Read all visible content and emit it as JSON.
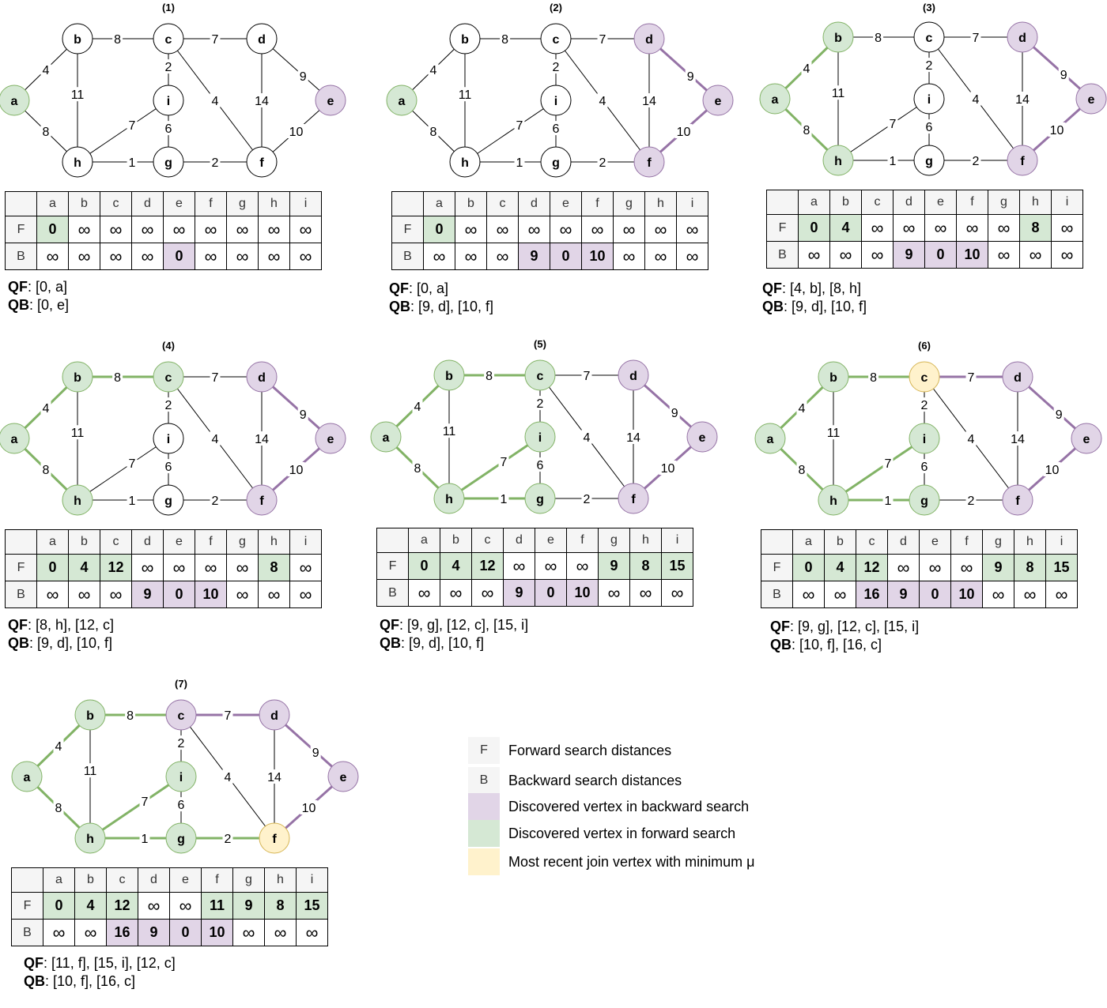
{
  "colors": {
    "forward": "#d5e8d4",
    "backward": "#e1d5e7",
    "join": "#fff2cc",
    "forward_stroke": "#82b366",
    "backward_stroke": "#9673a6",
    "join_stroke": "#d6b656",
    "forward_edge": "#82b366",
    "backward_edge": "#9673a6"
  },
  "graph": {
    "vertices": [
      "a",
      "b",
      "c",
      "d",
      "e",
      "f",
      "g",
      "h",
      "i"
    ],
    "edges": [
      {
        "u": "a",
        "v": "b",
        "w": "4"
      },
      {
        "u": "a",
        "v": "h",
        "w": "8"
      },
      {
        "u": "b",
        "v": "c",
        "w": "8"
      },
      {
        "u": "b",
        "v": "h",
        "w": "11"
      },
      {
        "u": "c",
        "v": "d",
        "w": "7"
      },
      {
        "u": "c",
        "v": "i",
        "w": "2"
      },
      {
        "u": "c",
        "v": "f",
        "w": "4"
      },
      {
        "u": "d",
        "v": "e",
        "w": "9"
      },
      {
        "u": "d",
        "v": "f",
        "w": "14"
      },
      {
        "u": "e",
        "v": "f",
        "w": "10"
      },
      {
        "u": "h",
        "v": "i",
        "w": "7"
      },
      {
        "u": "h",
        "v": "g",
        "w": "1"
      },
      {
        "u": "i",
        "v": "g",
        "w": "6"
      },
      {
        "u": "g",
        "v": "f",
        "w": "2"
      }
    ]
  },
  "table_columns": [
    "a",
    "b",
    "c",
    "d",
    "e",
    "f",
    "g",
    "h",
    "i"
  ],
  "row_labels": {
    "forward": "F",
    "backward": "B"
  },
  "infinity_symbol": "∞",
  "queue_labels": {
    "forward": "QF",
    "backward": "QB"
  },
  "steps": [
    {
      "title": "(1)",
      "nodes": {
        "a": "fwd",
        "e": "bwd"
      },
      "edges": {},
      "F": [
        "0",
        "∞",
        "∞",
        "∞",
        "∞",
        "∞",
        "∞",
        "∞",
        "∞"
      ],
      "B": [
        "∞",
        "∞",
        "∞",
        "∞",
        "0",
        "∞",
        "∞",
        "∞",
        "∞"
      ],
      "F_state": [
        "fwd",
        "",
        "",
        "",
        "",
        "",
        "",
        "",
        ""
      ],
      "B_state": [
        "",
        "",
        "",
        "",
        "bwd",
        "",
        "",
        "",
        ""
      ],
      "QF": ": [0, a]",
      "QB": ": [0, e]"
    },
    {
      "title": "(2)",
      "nodes": {
        "a": "fwd",
        "d": "bwd",
        "e": "bwd",
        "f": "bwd"
      },
      "edges": {
        "d-e": "bwd",
        "e-f": "bwd"
      },
      "F": [
        "0",
        "∞",
        "∞",
        "∞",
        "∞",
        "∞",
        "∞",
        "∞",
        "∞"
      ],
      "B": [
        "∞",
        "∞",
        "∞",
        "9",
        "0",
        "10",
        "∞",
        "∞",
        "∞"
      ],
      "F_state": [
        "fwd",
        "",
        "",
        "",
        "",
        "",
        "",
        "",
        ""
      ],
      "B_state": [
        "",
        "",
        "",
        "bwd",
        "bwd",
        "bwd",
        "",
        "",
        ""
      ],
      "QF": ": [0, a]",
      "QB": ": [9, d], [10, f]"
    },
    {
      "title": "(3)",
      "nodes": {
        "a": "fwd",
        "b": "fwd",
        "h": "fwd",
        "d": "bwd",
        "e": "bwd",
        "f": "bwd"
      },
      "edges": {
        "a-b": "fwd",
        "a-h": "fwd",
        "d-e": "bwd",
        "e-f": "bwd"
      },
      "F": [
        "0",
        "4",
        "∞",
        "∞",
        "∞",
        "∞",
        "∞",
        "8",
        "∞"
      ],
      "B": [
        "∞",
        "∞",
        "∞",
        "9",
        "0",
        "10",
        "∞",
        "∞",
        "∞"
      ],
      "F_state": [
        "fwd",
        "fwd",
        "",
        "",
        "",
        "",
        "",
        "fwd",
        ""
      ],
      "B_state": [
        "",
        "",
        "",
        "bwd",
        "bwd",
        "bwd",
        "",
        "",
        ""
      ],
      "QF": ": [4, b], [8, h]",
      "QB": ": [9, d], [10, f]"
    },
    {
      "title": "(4)",
      "nodes": {
        "a": "fwd",
        "b": "fwd",
        "c": "fwd",
        "h": "fwd",
        "d": "bwd",
        "e": "bwd",
        "f": "bwd"
      },
      "edges": {
        "a-b": "fwd",
        "a-h": "fwd",
        "b-c": "fwd",
        "d-e": "bwd",
        "e-f": "bwd"
      },
      "F": [
        "0",
        "4",
        "12",
        "∞",
        "∞",
        "∞",
        "∞",
        "8",
        "∞"
      ],
      "B": [
        "∞",
        "∞",
        "∞",
        "9",
        "0",
        "10",
        "∞",
        "∞",
        "∞"
      ],
      "F_state": [
        "fwd",
        "fwd",
        "fwd",
        "",
        "",
        "",
        "",
        "fwd",
        ""
      ],
      "B_state": [
        "",
        "",
        "",
        "bwd",
        "bwd",
        "bwd",
        "",
        "",
        ""
      ],
      "QF": ": [8, h], [12, c]",
      "QB": ": [9, d], [10, f]"
    },
    {
      "title": "(5)",
      "nodes": {
        "a": "fwd",
        "b": "fwd",
        "c": "fwd",
        "h": "fwd",
        "i": "fwd",
        "g": "fwd",
        "d": "bwd",
        "e": "bwd",
        "f": "bwd"
      },
      "edges": {
        "a-b": "fwd",
        "a-h": "fwd",
        "b-c": "fwd",
        "h-i": "fwd",
        "h-g": "fwd",
        "d-e": "bwd",
        "e-f": "bwd"
      },
      "F": [
        "0",
        "4",
        "12",
        "∞",
        "∞",
        "∞",
        "9",
        "8",
        "15"
      ],
      "B": [
        "∞",
        "∞",
        "∞",
        "9",
        "0",
        "10",
        "∞",
        "∞",
        "∞"
      ],
      "F_state": [
        "fwd",
        "fwd",
        "fwd",
        "",
        "",
        "",
        "fwd",
        "fwd",
        "fwd"
      ],
      "B_state": [
        "",
        "",
        "",
        "bwd",
        "bwd",
        "bwd",
        "",
        "",
        ""
      ],
      "QF": ": [9, g], [12, c], [15, i]",
      "QB": ": [9, d], [10, f]"
    },
    {
      "title": "(6)",
      "nodes": {
        "a": "fwd",
        "b": "fwd",
        "c": "join",
        "h": "fwd",
        "i": "fwd",
        "g": "fwd",
        "d": "bwd",
        "e": "bwd",
        "f": "bwd"
      },
      "edges": {
        "a-b": "fwd",
        "a-h": "fwd",
        "b-c": "fwd",
        "h-i": "fwd",
        "h-g": "fwd",
        "c-d": "bwd",
        "d-e": "bwd",
        "e-f": "bwd"
      },
      "F": [
        "0",
        "4",
        "12",
        "∞",
        "∞",
        "∞",
        "9",
        "8",
        "15"
      ],
      "B": [
        "∞",
        "∞",
        "16",
        "9",
        "0",
        "10",
        "∞",
        "∞",
        "∞"
      ],
      "F_state": [
        "fwd",
        "fwd",
        "fwd",
        "",
        "",
        "",
        "fwd",
        "fwd",
        "fwd"
      ],
      "B_state": [
        "",
        "",
        "bwd",
        "bwd",
        "bwd",
        "bwd",
        "",
        "",
        ""
      ],
      "QF": ": [9, g], [12, c], [15, i]",
      "QB": ": [10, f], [16, c]"
    },
    {
      "title": "(7)",
      "nodes": {
        "a": "fwd",
        "b": "fwd",
        "c": "bwd",
        "h": "fwd",
        "i": "fwd",
        "g": "fwd",
        "d": "bwd",
        "e": "bwd",
        "f": "join"
      },
      "edges": {
        "a-b": "fwd",
        "a-h": "fwd",
        "b-c": "fwd",
        "h-i": "fwd",
        "h-g": "fwd",
        "g-f": "fwd",
        "c-d": "bwd",
        "d-e": "bwd",
        "e-f": "bwd"
      },
      "F": [
        "0",
        "4",
        "12",
        "∞",
        "∞",
        "11",
        "9",
        "8",
        "15"
      ],
      "B": [
        "∞",
        "∞",
        "16",
        "9",
        "0",
        "10",
        "∞",
        "∞",
        "∞"
      ],
      "F_state": [
        "fwd",
        "fwd",
        "fwd",
        "",
        "",
        "fwd",
        "fwd",
        "fwd",
        "fwd"
      ],
      "B_state": [
        "",
        "",
        "bwd",
        "bwd",
        "bwd",
        "bwd",
        "",
        "",
        ""
      ],
      "QF": ": [11, f], [15, i], [12, c]",
      "QB": ": [10, f], [16, c]"
    }
  ],
  "legend": [
    {
      "swatch_label": "F",
      "text": "Forward search distances",
      "style": "plain"
    },
    {
      "swatch_label": "B",
      "text": "Backward search distances",
      "style": "plain"
    },
    {
      "swatch_label": "",
      "text": "Discovered vertex in backward search",
      "style": "bwd"
    },
    {
      "swatch_label": "",
      "text": "Discovered vertex in forward search",
      "style": "fwd"
    },
    {
      "swatch_label": "",
      "text": "Most recent join vertex with minimum μ",
      "style": "join"
    }
  ]
}
